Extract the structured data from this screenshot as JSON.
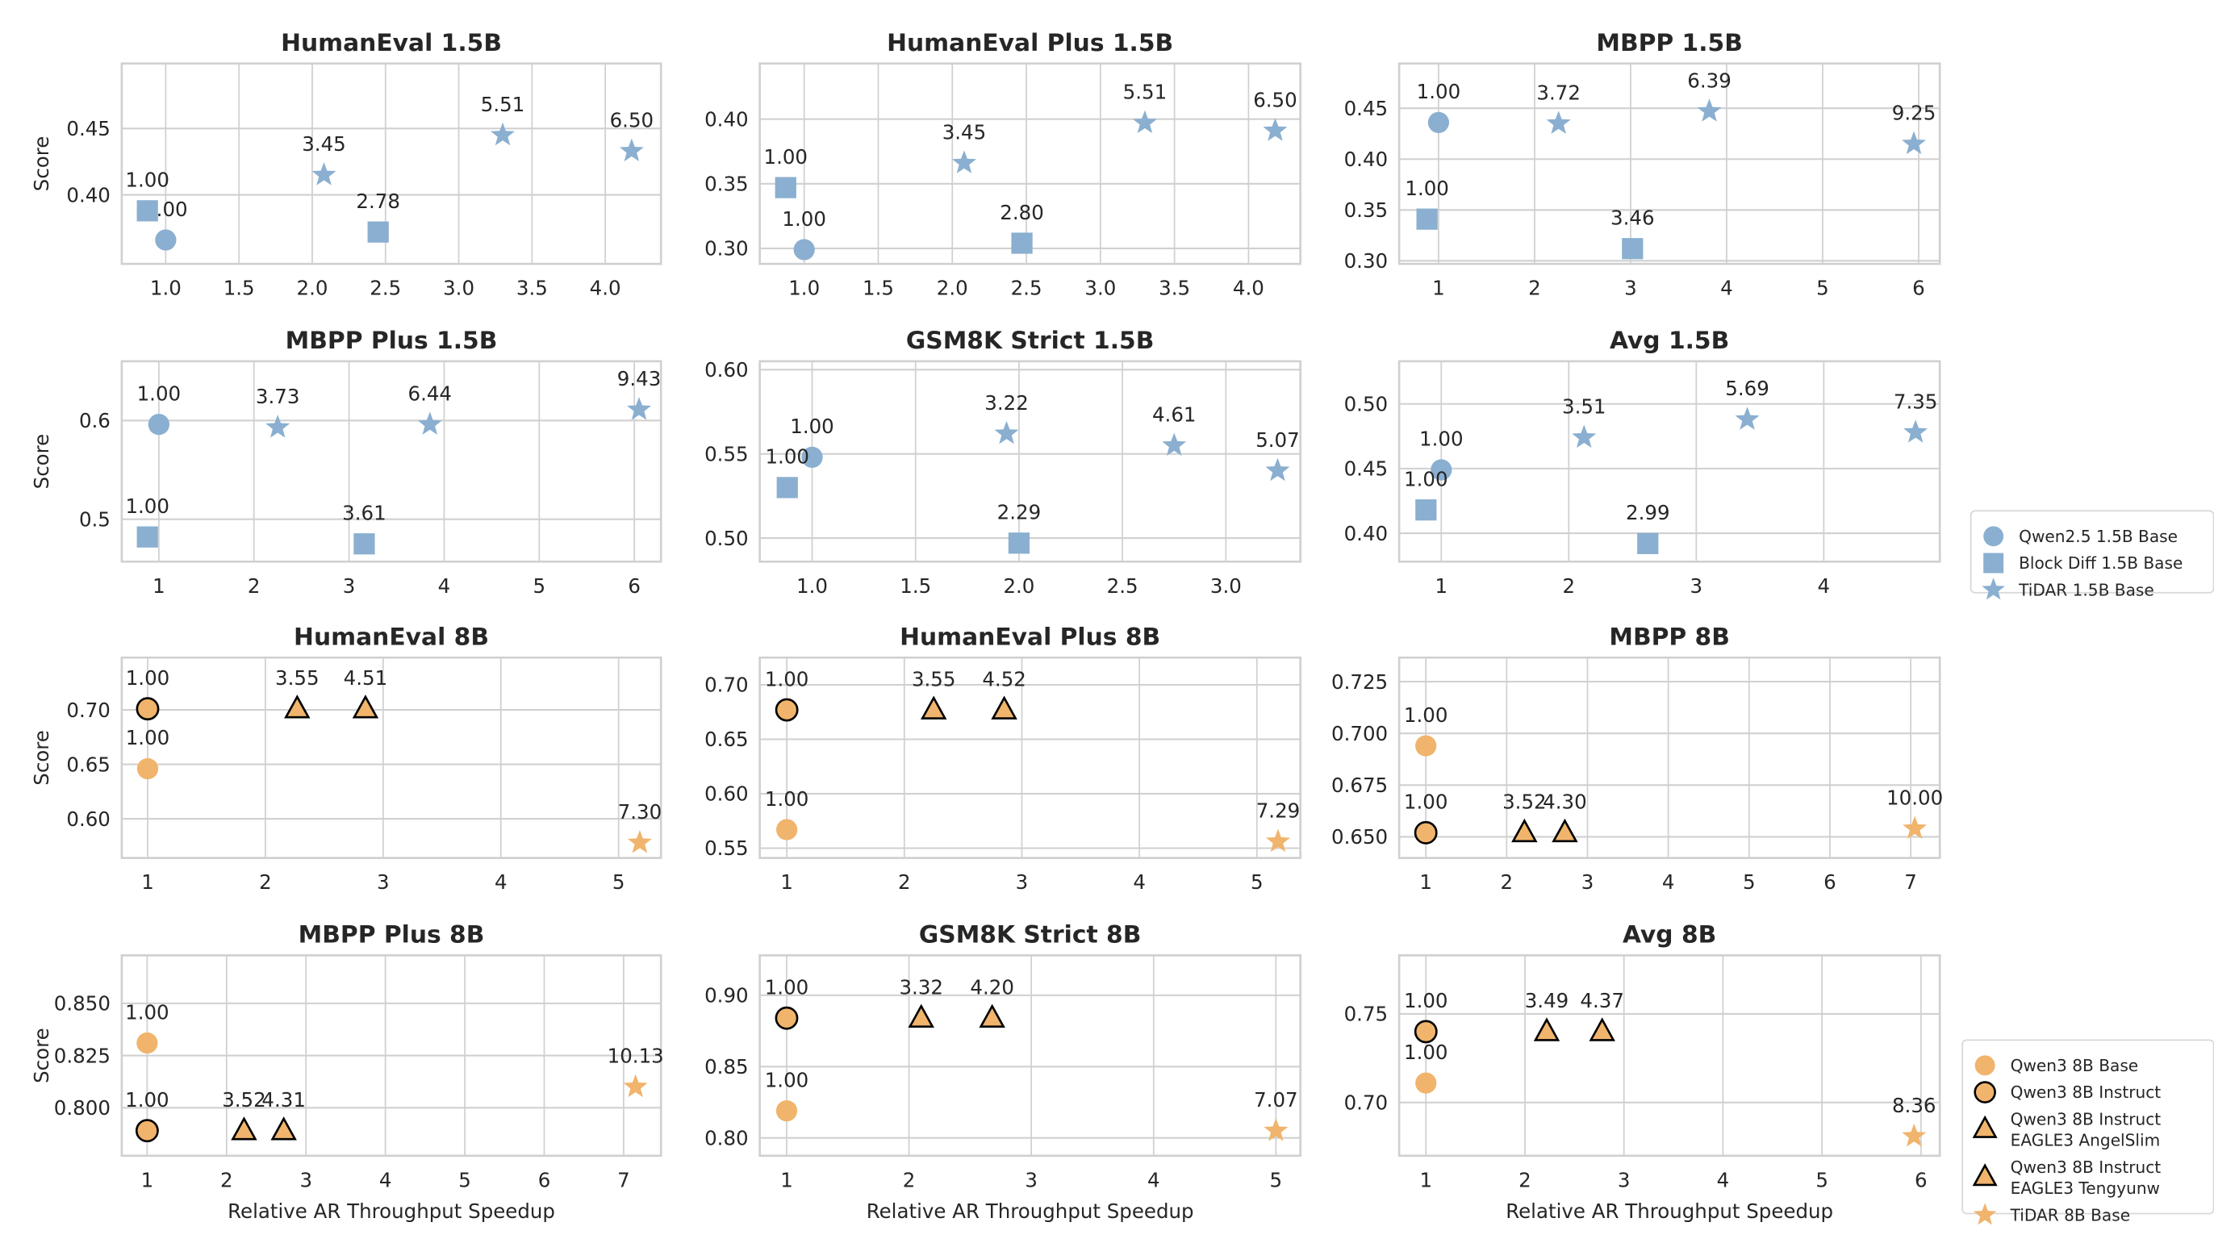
{
  "colors": {
    "blue": "#8aafd0",
    "orange": "#f0b46c",
    "outline": "#000000",
    "grid": "#d0d0d0"
  },
  "legends": [
    {
      "entries": [
        {
          "name": "Qwen2.5 1.5B Base",
          "marker": "circle",
          "color": "#8aafd0"
        },
        {
          "name": "Block Diff 1.5B Base",
          "marker": "square",
          "color": "#8aafd0"
        },
        {
          "name": "TiDAR 1.5B Base",
          "marker": "star",
          "color": "#8aafd0"
        }
      ]
    },
    {
      "entries": [
        {
          "name": "Qwen3 8B Base",
          "marker": "circle",
          "color": "#f0b46c"
        },
        {
          "name": "Qwen3 8B Instruct",
          "marker": "circle-outline",
          "color": "#f0b46c"
        },
        {
          "name": [
            "Qwen3 8B Instruct",
            "EAGLE3 AngelSlim"
          ],
          "marker": "triangle",
          "color": "#f0b46c"
        },
        {
          "name": [
            "Qwen3 8B Instruct",
            "EAGLE3 Tengyunw"
          ],
          "marker": "triangle",
          "color": "#f0b46c"
        },
        {
          "name": "TiDAR 8B Base",
          "marker": "star",
          "color": "#f0b46c"
        }
      ]
    }
  ],
  "chart_data": [
    {
      "type": "scatter",
      "title": "HumanEval 1.5B",
      "ylabel": "Score",
      "xlabel": "",
      "xlim": [
        0.7,
        4.38
      ],
      "ylim": [
        0.348,
        0.499
      ],
      "xticks": [
        "1.0",
        "1.5",
        "2.0",
        "2.5",
        "3.0",
        "3.5",
        "4.0"
      ],
      "yticks": [
        "0.40",
        "0.45"
      ],
      "grid": true,
      "series": [
        {
          "name": "Qwen2.5 1.5B Base",
          "points": [
            {
              "x": 1.0,
              "y": 0.366,
              "label": "1.00"
            }
          ]
        },
        {
          "name": "Block Diff 1.5B Base",
          "points": [
            {
              "x": 0.875,
              "y": 0.388,
              "label": "1.00"
            },
            {
              "x": 2.45,
              "y": 0.372,
              "label": "2.78"
            }
          ]
        },
        {
          "name": "TiDAR 1.5B Base",
          "points": [
            {
              "x": 2.08,
              "y": 0.415,
              "label": "3.45"
            },
            {
              "x": 3.3,
              "y": 0.445,
              "label": "5.51"
            },
            {
              "x": 4.18,
              "y": 0.433,
              "label": "6.50"
            }
          ]
        }
      ]
    },
    {
      "type": "scatter",
      "title": "HumanEval Plus 1.5B",
      "ylabel": "",
      "xlabel": "",
      "xlim": [
        0.7,
        4.35
      ],
      "ylim": [
        0.288,
        0.443
      ],
      "xticks": [
        "1.0",
        "1.5",
        "2.0",
        "2.5",
        "3.0",
        "3.5",
        "4.0"
      ],
      "yticks": [
        "0.30",
        "0.35",
        "0.40"
      ],
      "grid": true,
      "series": [
        {
          "name": "Qwen2.5 1.5B Base",
          "points": [
            {
              "x": 1.0,
              "y": 0.299,
              "label": "1.00"
            }
          ]
        },
        {
          "name": "Block Diff 1.5B Base",
          "points": [
            {
              "x": 0.875,
              "y": 0.347,
              "label": "1.00"
            },
            {
              "x": 2.47,
              "y": 0.304,
              "label": "2.80"
            }
          ]
        },
        {
          "name": "TiDAR 1.5B Base",
          "points": [
            {
              "x": 2.08,
              "y": 0.366,
              "label": "3.45"
            },
            {
              "x": 3.3,
              "y": 0.397,
              "label": "5.51"
            },
            {
              "x": 4.18,
              "y": 0.391,
              "label": "6.50"
            }
          ]
        }
      ]
    },
    {
      "type": "scatter",
      "title": "MBPP 1.5B",
      "ylabel": "",
      "xlabel": "",
      "xlim": [
        0.59,
        6.22
      ],
      "ylim": [
        0.297,
        0.494
      ],
      "xticks": [
        "1",
        "2",
        "3",
        "4",
        "5",
        "6"
      ],
      "yticks": [
        "0.30",
        "0.35",
        "0.40",
        "0.45"
      ],
      "grid": true,
      "series": [
        {
          "name": "Qwen2.5 1.5B Base",
          "points": [
            {
              "x": 1.0,
              "y": 0.436,
              "label": "1.00"
            }
          ]
        },
        {
          "name": "Block Diff 1.5B Base",
          "points": [
            {
              "x": 0.88,
              "y": 0.341,
              "label": "1.00"
            },
            {
              "x": 3.02,
              "y": 0.312,
              "label": "3.46"
            }
          ]
        },
        {
          "name": "TiDAR 1.5B Base",
          "points": [
            {
              "x": 2.25,
              "y": 0.435,
              "label": "3.72"
            },
            {
              "x": 3.82,
              "y": 0.447,
              "label": "6.39"
            },
            {
              "x": 5.95,
              "y": 0.415,
              "label": "9.25"
            }
          ]
        }
      ]
    },
    {
      "type": "scatter",
      "title": "MBPP Plus 1.5B",
      "ylabel": "Score",
      "xlabel": "",
      "xlim": [
        0.61,
        6.28
      ],
      "ylim": [
        0.457,
        0.66
      ],
      "xticks": [
        "1",
        "2",
        "3",
        "4",
        "5",
        "6"
      ],
      "yticks": [
        "0.5",
        "0.6"
      ],
      "grid": true,
      "series": [
        {
          "name": "Qwen2.5 1.5B Base",
          "points": [
            {
              "x": 1.0,
              "y": 0.596,
              "label": "1.00"
            }
          ]
        },
        {
          "name": "Block Diff 1.5B Base",
          "points": [
            {
              "x": 0.88,
              "y": 0.482,
              "label": "1.00"
            },
            {
              "x": 3.16,
              "y": 0.475,
              "label": "3.61"
            }
          ]
        },
        {
          "name": "TiDAR 1.5B Base",
          "points": [
            {
              "x": 2.25,
              "y": 0.593,
              "label": "3.73"
            },
            {
              "x": 3.85,
              "y": 0.596,
              "label": "6.44"
            },
            {
              "x": 6.05,
              "y": 0.611,
              "label": "9.43"
            }
          ]
        }
      ]
    },
    {
      "type": "scatter",
      "title": "GSM8K Strict 1.5B",
      "ylabel": "",
      "xlabel": "",
      "xlim": [
        0.747,
        3.36
      ],
      "ylim": [
        0.486,
        0.605
      ],
      "xticks": [
        "1.0",
        "1.5",
        "2.0",
        "2.5",
        "3.0"
      ],
      "yticks": [
        "0.50",
        "0.55",
        "0.60"
      ],
      "grid": true,
      "series": [
        {
          "name": "Qwen2.5 1.5B Base",
          "points": [
            {
              "x": 1.0,
              "y": 0.548,
              "label": "1.00"
            }
          ]
        },
        {
          "name": "Block Diff 1.5B Base",
          "points": [
            {
              "x": 0.88,
              "y": 0.53,
              "label": "1.00"
            },
            {
              "x": 2.0,
              "y": 0.497,
              "label": "2.29"
            }
          ]
        },
        {
          "name": "TiDAR 1.5B Base",
          "points": [
            {
              "x": 1.94,
              "y": 0.562,
              "label": "3.22"
            },
            {
              "x": 2.75,
              "y": 0.555,
              "label": "4.61"
            },
            {
              "x": 3.25,
              "y": 0.54,
              "label": "5.07"
            }
          ]
        }
      ]
    },
    {
      "type": "scatter",
      "title": "Avg 1.5B",
      "ylabel": "",
      "xlabel": "",
      "xlim": [
        0.67,
        4.91
      ],
      "ylim": [
        0.378,
        0.533
      ],
      "xticks": [
        "1",
        "2",
        "3",
        "4"
      ],
      "yticks": [
        "0.40",
        "0.45",
        "0.50"
      ],
      "grid": true,
      "series": [
        {
          "name": "Qwen2.5 1.5B Base",
          "points": [
            {
              "x": 1.0,
              "y": 0.449,
              "label": "1.00"
            }
          ]
        },
        {
          "name": "Block Diff 1.5B Base",
          "points": [
            {
              "x": 0.88,
              "y": 0.418,
              "label": "1.00"
            },
            {
              "x": 2.62,
              "y": 0.392,
              "label": "2.99"
            }
          ]
        },
        {
          "name": "TiDAR 1.5B Base",
          "points": [
            {
              "x": 2.12,
              "y": 0.474,
              "label": "3.51"
            },
            {
              "x": 3.4,
              "y": 0.488,
              "label": "5.69"
            },
            {
              "x": 4.72,
              "y": 0.478,
              "label": "7.35"
            }
          ]
        }
      ]
    },
    {
      "type": "scatter",
      "title": "HumanEval 8B",
      "ylabel": "Score",
      "xlabel": "",
      "xlim": [
        0.78,
        5.36
      ],
      "ylim": [
        0.564,
        0.748
      ],
      "xticks": [
        "1",
        "2",
        "3",
        "4",
        "5"
      ],
      "yticks": [
        "0.60",
        "0.65",
        "0.70"
      ],
      "grid": true,
      "series": [
        {
          "name": "Qwen3 8B Base",
          "points": [
            {
              "x": 1.0,
              "y": 0.646,
              "label": "1.00"
            }
          ]
        },
        {
          "name": "Qwen3 8B Instruct",
          "points": [
            {
              "x": 1.0,
              "y": 0.701,
              "label": "1.00"
            }
          ]
        },
        {
          "name": "Qwen3 8B Instruct EAGLE3 AngelSlim",
          "points": [
            {
              "x": 2.27,
              "y": 0.701,
              "label": "3.55"
            }
          ]
        },
        {
          "name": "Qwen3 8B Instruct EAGLE3 Tengyunw",
          "points": [
            {
              "x": 2.85,
              "y": 0.701,
              "label": "4.51"
            }
          ]
        },
        {
          "name": "TiDAR 8B Base",
          "points": [
            {
              "x": 5.18,
              "y": 0.578,
              "label": "7.30"
            }
          ]
        }
      ]
    },
    {
      "type": "scatter",
      "title": "HumanEval Plus 8B",
      "ylabel": "",
      "xlabel": "",
      "xlim": [
        0.77,
        5.37
      ],
      "ylim": [
        0.541,
        0.725
      ],
      "xticks": [
        "1",
        "2",
        "3",
        "4",
        "5"
      ],
      "yticks": [
        "0.55",
        "0.60",
        "0.65",
        "0.70"
      ],
      "grid": true,
      "series": [
        {
          "name": "Qwen3 8B Base",
          "points": [
            {
              "x": 1.0,
              "y": 0.567,
              "label": "1.00"
            }
          ]
        },
        {
          "name": "Qwen3 8B Instruct",
          "points": [
            {
              "x": 1.0,
              "y": 0.677,
              "label": "1.00"
            }
          ]
        },
        {
          "name": "Qwen3 8B Instruct EAGLE3 AngelSlim",
          "points": [
            {
              "x": 2.25,
              "y": 0.677,
              "label": "3.55"
            }
          ]
        },
        {
          "name": "Qwen3 8B Instruct EAGLE3 Tengyunw",
          "points": [
            {
              "x": 2.85,
              "y": 0.677,
              "label": "4.52"
            }
          ]
        },
        {
          "name": "TiDAR 8B Base",
          "points": [
            {
              "x": 5.18,
              "y": 0.556,
              "label": "7.29"
            }
          ]
        }
      ]
    },
    {
      "type": "scatter",
      "title": "MBPP 8B",
      "ylabel": "",
      "xlabel": "",
      "xlim": [
        0.67,
        7.36
      ],
      "ylim": [
        0.6398,
        0.7366
      ],
      "xticks": [
        "1",
        "2",
        "3",
        "4",
        "5",
        "6",
        "7"
      ],
      "yticks": [
        "0.650",
        "0.675",
        "0.700",
        "0.725"
      ],
      "grid": true,
      "series": [
        {
          "name": "Qwen3 8B Base",
          "points": [
            {
              "x": 1.0,
              "y": 0.694,
              "label": "1.00"
            }
          ]
        },
        {
          "name": "Qwen3 8B Instruct",
          "points": [
            {
              "x": 1.0,
              "y": 0.652,
              "label": "1.00"
            }
          ]
        },
        {
          "name": "Qwen3 8B Instruct EAGLE3 AngelSlim",
          "points": [
            {
              "x": 2.22,
              "y": 0.652,
              "label": "3.52"
            }
          ]
        },
        {
          "name": "Qwen3 8B Instruct EAGLE3 Tengyunw",
          "points": [
            {
              "x": 2.72,
              "y": 0.652,
              "label": "4.30"
            }
          ]
        },
        {
          "name": "TiDAR 8B Base",
          "points": [
            {
              "x": 7.05,
              "y": 0.654,
              "label": "10.00"
            }
          ]
        }
      ]
    },
    {
      "type": "scatter",
      "title": "MBPP Plus 8B",
      "ylabel": "Score",
      "xlabel": "Relative AR Throughput Speedup",
      "xlim": [
        0.68,
        7.47
      ],
      "ylim": [
        0.777,
        0.873
      ],
      "xticks": [
        "1",
        "2",
        "3",
        "4",
        "5",
        "6",
        "7"
      ],
      "yticks": [
        "0.800",
        "0.825",
        "0.850"
      ],
      "grid": true,
      "series": [
        {
          "name": "Qwen3 8B Base",
          "points": [
            {
              "x": 1.0,
              "y": 0.831,
              "label": "1.00"
            }
          ]
        },
        {
          "name": "Qwen3 8B Instruct",
          "points": [
            {
              "x": 1.0,
              "y": 0.789,
              "label": "1.00"
            }
          ]
        },
        {
          "name": "Qwen3 8B Instruct EAGLE3 AngelSlim",
          "points": [
            {
              "x": 2.22,
              "y": 0.789,
              "label": "3.52"
            }
          ]
        },
        {
          "name": "Qwen3 8B Instruct EAGLE3 Tengyunw",
          "points": [
            {
              "x": 2.72,
              "y": 0.789,
              "label": "4.31"
            }
          ]
        },
        {
          "name": "TiDAR 8B Base",
          "points": [
            {
              "x": 7.15,
              "y": 0.81,
              "label": "10.13"
            }
          ]
        }
      ]
    },
    {
      "type": "scatter",
      "title": "GSM8K Strict 8B",
      "ylabel": "",
      "xlabel": "Relative AR Throughput Speedup",
      "xlim": [
        0.78,
        5.2
      ],
      "ylim": [
        0.7875,
        0.928
      ],
      "xticks": [
        "1",
        "2",
        "3",
        "4",
        "5"
      ],
      "yticks": [
        "0.80",
        "0.85",
        "0.90"
      ],
      "grid": true,
      "series": [
        {
          "name": "Qwen3 8B Base",
          "points": [
            {
              "x": 1.0,
              "y": 0.819,
              "label": "1.00"
            }
          ]
        },
        {
          "name": "Qwen3 8B Instruct",
          "points": [
            {
              "x": 1.0,
              "y": 0.884,
              "label": "1.00"
            }
          ]
        },
        {
          "name": "Qwen3 8B Instruct EAGLE3 AngelSlim",
          "points": [
            {
              "x": 2.1,
              "y": 0.884,
              "label": "3.32"
            }
          ]
        },
        {
          "name": "Qwen3 8B Instruct EAGLE3 Tengyunw",
          "points": [
            {
              "x": 2.68,
              "y": 0.884,
              "label": "4.20"
            }
          ]
        },
        {
          "name": "TiDAR 8B Base",
          "points": [
            {
              "x": 5.0,
              "y": 0.805,
              "label": "7.07"
            }
          ]
        }
      ]
    },
    {
      "type": "scatter",
      "title": "Avg 8B",
      "ylabel": "",
      "xlabel": "Relative AR Throughput Speedup",
      "xlim": [
        0.73,
        6.19
      ],
      "ylim": [
        0.67,
        0.783
      ],
      "xticks": [
        "1",
        "2",
        "3",
        "4",
        "5",
        "6"
      ],
      "yticks": [
        "0.70",
        "0.75"
      ],
      "grid": true,
      "series": [
        {
          "name": "Qwen3 8B Base",
          "points": [
            {
              "x": 1.0,
              "y": 0.711,
              "label": "1.00"
            }
          ]
        },
        {
          "name": "Qwen3 8B Instruct",
          "points": [
            {
              "x": 1.0,
              "y": 0.74,
              "label": "1.00"
            }
          ]
        },
        {
          "name": "Qwen3 8B Instruct EAGLE3 AngelSlim",
          "points": [
            {
              "x": 2.22,
              "y": 0.74,
              "label": "3.49"
            }
          ]
        },
        {
          "name": "Qwen3 8B Instruct EAGLE3 Tengyunw",
          "points": [
            {
              "x": 2.78,
              "y": 0.74,
              "label": "4.37"
            }
          ]
        },
        {
          "name": "TiDAR 8B Base",
          "points": [
            {
              "x": 5.93,
              "y": 0.681,
              "label": "8.36"
            }
          ]
        }
      ]
    }
  ]
}
